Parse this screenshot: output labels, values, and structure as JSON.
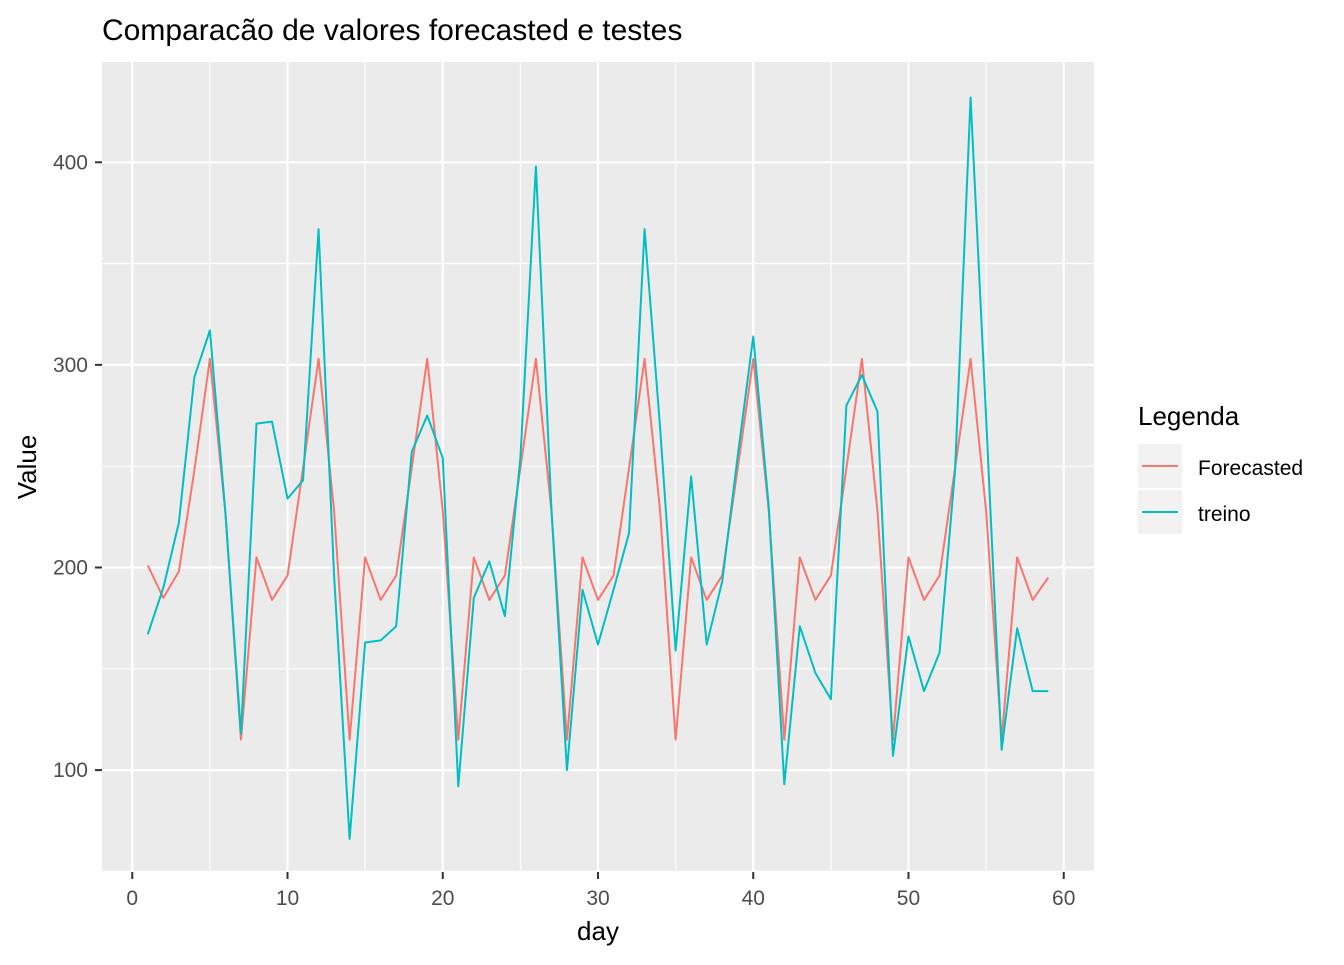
{
  "chart_data": {
    "type": "line",
    "title": "Comparacão de valores forecasted e testes",
    "xlabel": "day",
    "ylabel": "Value",
    "xlim": [
      -1.95,
      61.95
    ],
    "ylim": [
      49.7,
      449.5
    ],
    "x_ticks": [
      0,
      10,
      20,
      30,
      40,
      50,
      60
    ],
    "y_ticks": [
      100,
      200,
      300,
      400
    ],
    "grid": true,
    "legend_position": "right",
    "legend": {
      "title": "Legenda",
      "entries": [
        "Forecasted",
        "treino"
      ]
    },
    "x": [
      1,
      2,
      3,
      4,
      5,
      6,
      7,
      8,
      9,
      10,
      11,
      12,
      13,
      14,
      15,
      16,
      17,
      18,
      19,
      20,
      21,
      22,
      23,
      24,
      25,
      26,
      27,
      28,
      29,
      30,
      31,
      32,
      33,
      34,
      35,
      36,
      37,
      38,
      39,
      40,
      41,
      42,
      43,
      44,
      45,
      46,
      47,
      48,
      49,
      50,
      51,
      52,
      53,
      54,
      55,
      56,
      57,
      58,
      59
    ],
    "series": [
      {
        "name": "Forecasted",
        "color": "#F8766D",
        "values": [
          201,
          185,
          198,
          248,
          303,
          227,
          115,
          205,
          184,
          196,
          249,
          303,
          228,
          115,
          205,
          184,
          196,
          249,
          303,
          228,
          115,
          205,
          184,
          196,
          249,
          303,
          228,
          115,
          205,
          184,
          196,
          249,
          303,
          228,
          115,
          205,
          184,
          196,
          249,
          303,
          228,
          115,
          205,
          184,
          196,
          249,
          303,
          228,
          115,
          205,
          184,
          196,
          249,
          303,
          228,
          115,
          205,
          184,
          195
        ]
      },
      {
        "name": "treino",
        "color": "#00BFC4",
        "values": [
          167,
          190,
          222,
          294,
          317,
          227,
          118,
          271,
          272,
          234,
          243,
          367,
          196,
          66,
          163,
          164,
          171,
          257,
          275,
          254,
          92,
          185,
          203,
          176,
          254,
          398,
          229,
          100,
          189,
          162,
          189,
          217,
          367,
          269,
          159,
          245,
          162,
          193,
          255,
          314,
          230,
          93,
          171,
          148,
          135,
          280,
          295,
          277,
          107,
          166,
          139,
          158,
          248,
          432,
          274,
          110,
          170,
          139,
          139
        ]
      }
    ]
  }
}
